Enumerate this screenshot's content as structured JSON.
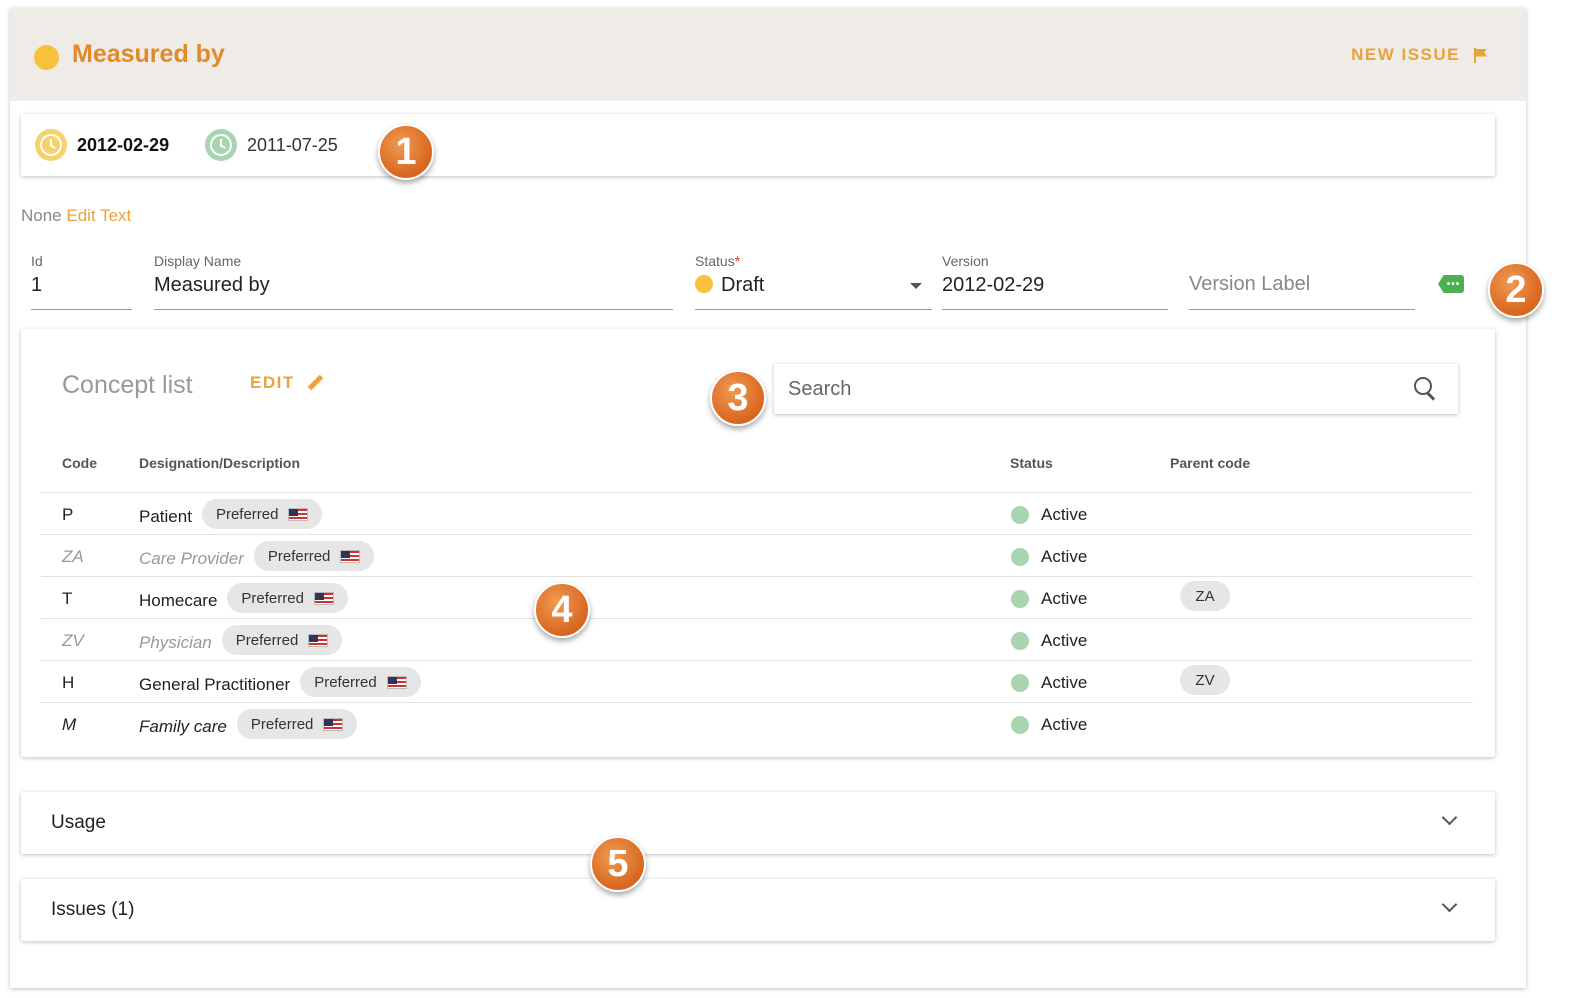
{
  "header": {
    "title": "Measured by",
    "new_issue_label": "NEW ISSUE"
  },
  "dates": {
    "primary": "2012-02-29",
    "secondary": "2011-07-25"
  },
  "markers": [
    "1",
    "2",
    "3",
    "4",
    "5"
  ],
  "text_row": {
    "none": "None",
    "edit_text": "Edit Text"
  },
  "fields": {
    "id": {
      "label": "Id",
      "value": "1"
    },
    "display_name": {
      "label": "Display Name",
      "value": "Measured by"
    },
    "status": {
      "label": "Status",
      "required_mark": "*",
      "value": "Draft"
    },
    "version": {
      "label": "Version",
      "value": "2012-02-29"
    },
    "version_label": {
      "placeholder": "Version Label"
    },
    "tag_icon_text": "•••"
  },
  "concept_list": {
    "title": "Concept list",
    "edit_label": "EDIT",
    "search_placeholder": "Search",
    "columns": [
      "Code",
      "Designation/Description",
      "Status",
      "Parent code"
    ],
    "rows": [
      {
        "code": "P",
        "designation": "Patient",
        "chip": "Preferred",
        "status": "Active",
        "parent": ""
      },
      {
        "code": "ZA",
        "designation": "Care Provider",
        "chip": "Preferred",
        "status": "Active",
        "parent": ""
      },
      {
        "code": "T",
        "designation": "Homecare",
        "chip": "Preferred",
        "status": "Active",
        "parent": "ZA"
      },
      {
        "code": "ZV",
        "designation": "Physician",
        "chip": "Preferred",
        "status": "Active",
        "parent": ""
      },
      {
        "code": "H",
        "designation": "General Practitioner",
        "chip": "Preferred",
        "status": "Active",
        "parent": "ZV"
      },
      {
        "code": "M",
        "designation": "Family care",
        "chip": "Preferred",
        "status": "Active",
        "parent": ""
      }
    ]
  },
  "accordions": {
    "usage": "Usage",
    "issues": "Issues (1)"
  },
  "colors": {
    "accent": "#e08a2a",
    "draft_dot": "#f6c23e",
    "active_dot": "#a8d5b0",
    "header_bg": "#efebe6"
  },
  "icons": [
    "status-dot-icon",
    "flag-icon",
    "clock-icon",
    "tag-icon",
    "pencil-icon",
    "search-icon",
    "us-flag-icon",
    "chevron-down-icon"
  ]
}
